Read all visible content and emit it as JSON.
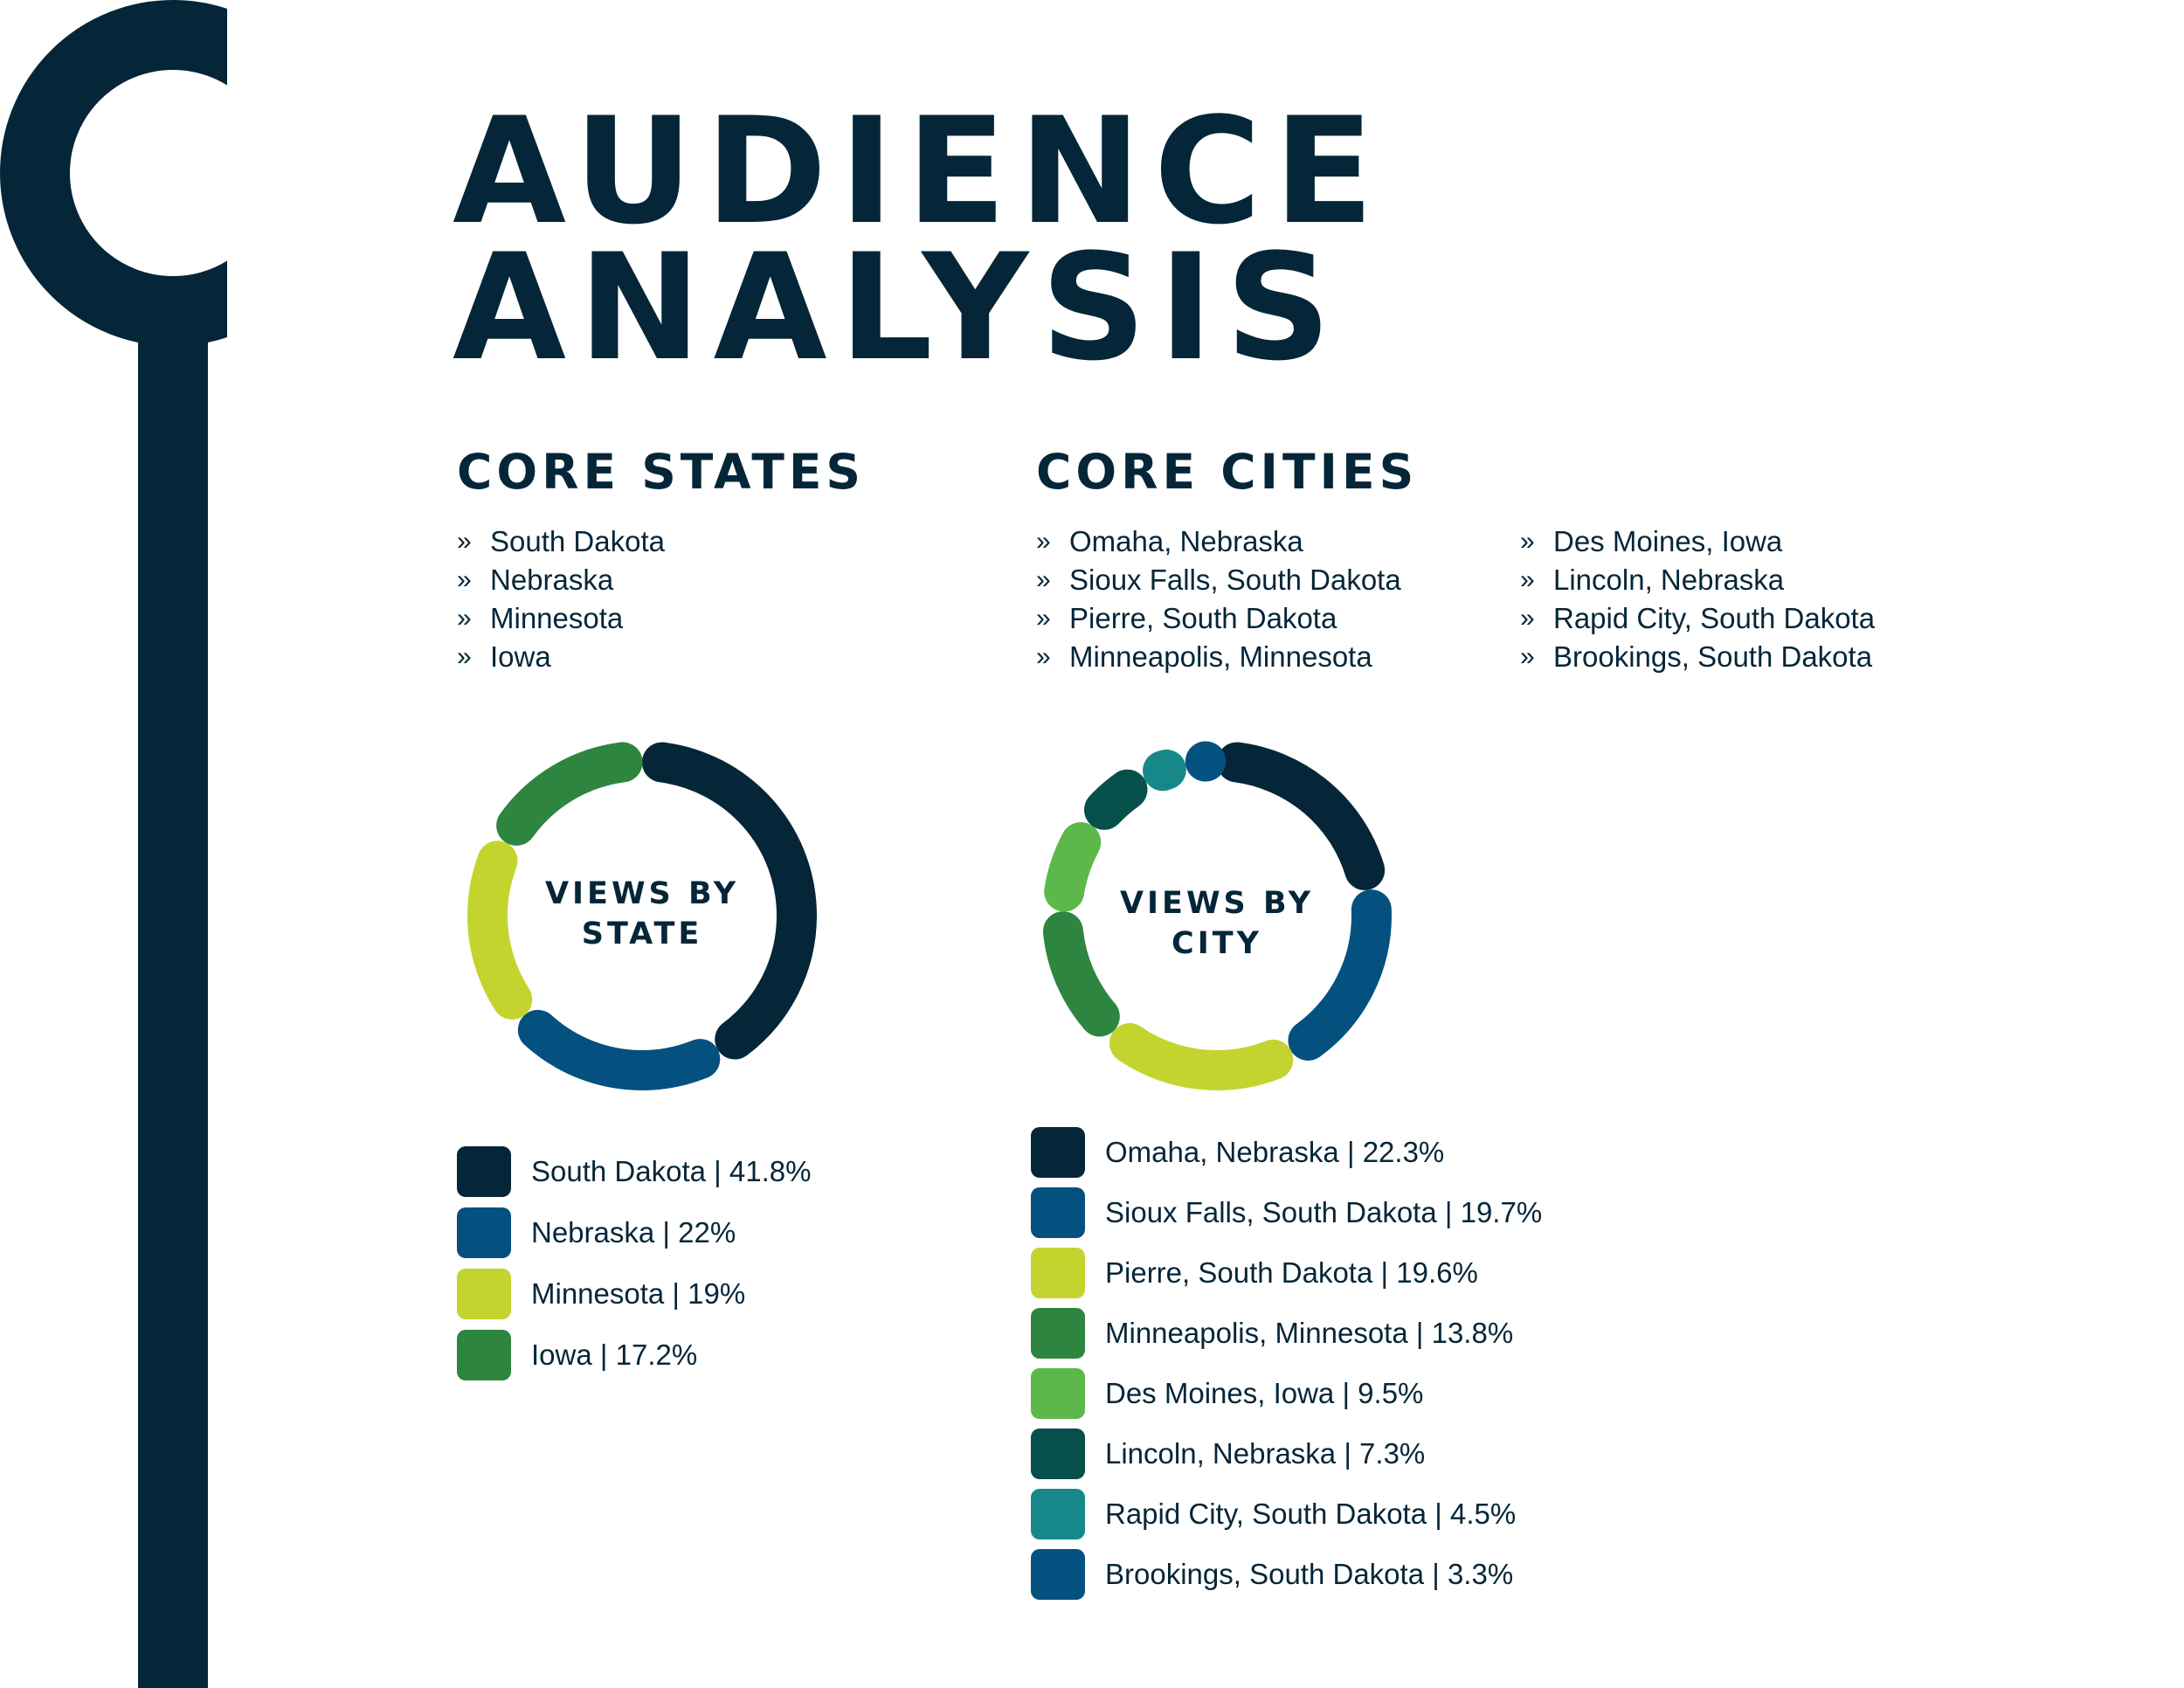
{
  "title": {
    "line1": "AUDIENCE",
    "line2": "ANALYSIS"
  },
  "colors": {
    "navy": "#052638",
    "background": "#ffffff"
  },
  "deco": {
    "icon": "timeline-pin-icon"
  },
  "core_states": {
    "heading": "CORE STATES",
    "bullet_mark": "»",
    "items": [
      "South Dakota",
      "Nebraska",
      "Minnesota",
      "Iowa"
    ]
  },
  "core_cities": {
    "heading": "CORE CITIES",
    "bullet_mark": "»",
    "col1": [
      "Omaha, Nebraska",
      "Sioux Falls, South Dakota",
      "Pierre, South Dakota",
      "Minneapolis, Minnesota"
    ],
    "col2": [
      "Des Moines, Iowa",
      "Lincoln, Nebraska",
      "Rapid City, South Dakota",
      "Brookings, South Dakota"
    ]
  },
  "chart_data": [
    {
      "type": "pie",
      "style": "donut",
      "title": "VIEWS BY STATE",
      "title_lines": [
        "VIEWS BY",
        "STATE"
      ],
      "categories": [
        "South Dakota",
        "Nebraska",
        "Minnesota",
        "Iowa"
      ],
      "values": [
        41.8,
        22,
        19,
        17.2
      ],
      "labels": [
        "South Dakota | 41.8%",
        "Nebraska | 22%",
        "Minnesota | 19%",
        "Iowa | 17.2%"
      ],
      "colors": [
        "#052638",
        "#04517f",
        "#c3d42f",
        "#2e8540"
      ],
      "legend": "below"
    },
    {
      "type": "pie",
      "style": "donut",
      "title": "VIEWS BY CITY",
      "title_lines": [
        "VIEWS BY",
        "CITY"
      ],
      "categories": [
        "Omaha, Nebraska",
        "Sioux Falls, South Dakota",
        "Pierre, South Dakota",
        "Minneapolis, Minnesota",
        "Des Moines, Iowa",
        "Lincoln, Nebraska",
        "Rapid City, South Dakota",
        "Brookings, South Dakota"
      ],
      "values": [
        22.3,
        19.7,
        19.6,
        13.8,
        9.5,
        7.3,
        4.5,
        3.3
      ],
      "labels": [
        "Omaha, Nebraska | 22.3%",
        "Sioux Falls, South Dakota | 19.7%",
        "Pierre, South Dakota | 19.6%",
        "Minneapolis, Minnesota | 13.8%",
        "Des Moines, Iowa | 9.5%",
        "Lincoln, Nebraska | 7.3%",
        "Rapid City, South Dakota | 4.5%",
        "Brookings, South Dakota | 3.3%"
      ],
      "colors": [
        "#052638",
        "#04517f",
        "#c3d42f",
        "#2e8540",
        "#5cb848",
        "#064f4a",
        "#17888a",
        "#04517f"
      ],
      "legend": "below"
    }
  ]
}
